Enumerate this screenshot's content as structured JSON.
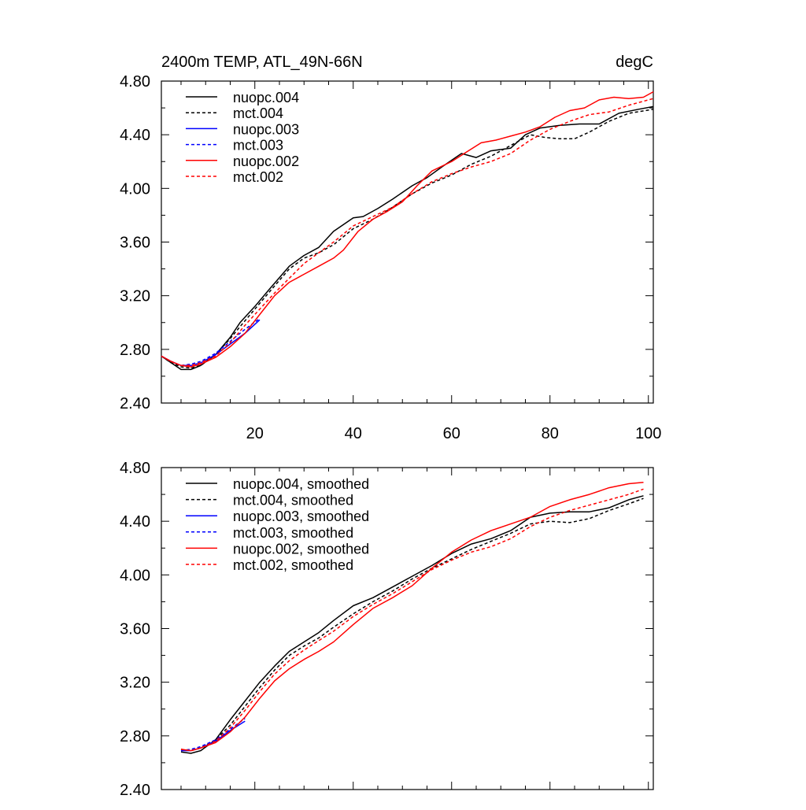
{
  "chart_data": [
    {
      "type": "line",
      "title": "2400m TEMP, ATL_49N-66N",
      "units": "degC",
      "xlim": [
        1,
        101
      ],
      "ylim": [
        2.4,
        4.8
      ],
      "yticks": [
        "2.40",
        "2.80",
        "3.20",
        "3.60",
        "4.00",
        "4.40",
        "4.80"
      ],
      "xticks": [
        "20",
        "40",
        "60",
        "80",
        "100"
      ],
      "series": [
        {
          "name": "nuopc.004",
          "color": "#000000",
          "dash": "solid",
          "x": [
            1,
            3,
            5,
            7,
            9,
            12,
            15,
            17,
            20,
            23,
            27,
            30,
            33,
            36,
            40,
            42,
            45,
            48,
            52,
            55,
            58,
            62,
            65,
            68,
            72,
            75,
            78,
            82,
            86,
            90,
            94,
            98,
            101
          ],
          "y": [
            2.75,
            2.7,
            2.65,
            2.65,
            2.68,
            2.76,
            2.89,
            3.0,
            3.12,
            3.25,
            3.42,
            3.5,
            3.56,
            3.68,
            3.78,
            3.79,
            3.85,
            3.92,
            4.02,
            4.08,
            4.16,
            4.26,
            4.23,
            4.28,
            4.3,
            4.4,
            4.45,
            4.47,
            4.48,
            4.48,
            4.56,
            4.59,
            4.61
          ]
        },
        {
          "name": "mct.004",
          "color": "#000000",
          "dash": "dashed",
          "x": [
            1,
            3,
            5,
            7,
            9,
            12,
            15,
            17,
            20,
            23,
            27,
            30,
            33,
            36,
            40,
            44,
            48,
            52,
            56,
            60,
            64,
            68,
            72,
            76,
            79,
            82,
            85,
            88,
            92,
            96,
            101
          ],
          "y": [
            2.75,
            2.7,
            2.67,
            2.66,
            2.68,
            2.76,
            2.88,
            2.97,
            3.1,
            3.23,
            3.4,
            3.48,
            3.52,
            3.58,
            3.7,
            3.77,
            3.86,
            3.96,
            4.04,
            4.1,
            4.18,
            4.24,
            4.32,
            4.4,
            4.38,
            4.37,
            4.37,
            4.42,
            4.5,
            4.56,
            4.59
          ]
        },
        {
          "name": "nuopc.003",
          "color": "#0000ff",
          "dash": "solid",
          "x": [
            1,
            3,
            5,
            7,
            9,
            12,
            15,
            18,
            21
          ],
          "y": [
            2.75,
            2.71,
            2.68,
            2.68,
            2.7,
            2.76,
            2.84,
            2.92,
            3.02
          ]
        },
        {
          "name": "mct.003",
          "color": "#0000ff",
          "dash": "dashed",
          "x": [
            1,
            3,
            5,
            7,
            9,
            12,
            15,
            18,
            21
          ],
          "y": [
            2.75,
            2.71,
            2.68,
            2.69,
            2.71,
            2.77,
            2.86,
            2.95,
            3.03
          ]
        },
        {
          "name": "nuopc.002",
          "color": "#ff0000",
          "dash": "solid",
          "x": [
            1,
            3,
            5,
            7,
            9,
            12,
            15,
            18,
            21,
            24,
            27,
            30,
            33,
            36,
            38,
            41,
            44,
            47,
            50,
            53,
            56,
            60,
            63,
            66,
            69,
            72,
            75,
            78,
            81,
            84,
            87,
            90,
            93,
            96,
            99,
            101
          ],
          "y": [
            2.75,
            2.71,
            2.68,
            2.67,
            2.69,
            2.74,
            2.82,
            2.92,
            3.06,
            3.2,
            3.3,
            3.36,
            3.42,
            3.48,
            3.54,
            3.68,
            3.77,
            3.83,
            3.9,
            4.02,
            4.13,
            4.2,
            4.27,
            4.34,
            4.36,
            4.39,
            4.42,
            4.46,
            4.53,
            4.58,
            4.6,
            4.66,
            4.68,
            4.67,
            4.68,
            4.72
          ]
        },
        {
          "name": "mct.002",
          "color": "#ff0000",
          "dash": "dashed",
          "x": [
            1,
            3,
            5,
            7,
            9,
            12,
            15,
            18,
            21,
            24,
            27,
            30,
            33,
            36,
            40,
            44,
            48,
            52,
            56,
            60,
            64,
            68,
            72,
            76,
            80,
            84,
            88,
            92,
            96,
            101
          ],
          "y": [
            2.75,
            2.71,
            2.68,
            2.68,
            2.7,
            2.75,
            2.85,
            2.98,
            3.1,
            3.22,
            3.33,
            3.44,
            3.52,
            3.6,
            3.72,
            3.79,
            3.86,
            3.96,
            4.05,
            4.11,
            4.16,
            4.2,
            4.26,
            4.36,
            4.44,
            4.5,
            4.55,
            4.57,
            4.62,
            4.67
          ]
        }
      ]
    },
    {
      "type": "line",
      "xlim": [
        1,
        101
      ],
      "ylim": [
        2.4,
        4.8
      ],
      "yticks": [
        "2.40",
        "2.80",
        "3.20",
        "3.60",
        "4.00",
        "4.40",
        "4.80"
      ],
      "series": [
        {
          "name": "nuopc.004, smoothed",
          "color": "#000000",
          "dash": "solid",
          "x": [
            5,
            7,
            9,
            12,
            15,
            18,
            21,
            24,
            27,
            30,
            33,
            36,
            40,
            44,
            48,
            52,
            56,
            60,
            64,
            68,
            72,
            76,
            80,
            84,
            88,
            92,
            96,
            99
          ],
          "y": [
            2.68,
            2.67,
            2.69,
            2.77,
            2.92,
            3.06,
            3.2,
            3.32,
            3.43,
            3.5,
            3.57,
            3.66,
            3.77,
            3.83,
            3.91,
            3.99,
            4.07,
            4.16,
            4.23,
            4.27,
            4.33,
            4.43,
            4.46,
            4.47,
            4.47,
            4.5,
            4.56,
            4.59
          ]
        },
        {
          "name": "mct.004, smoothed",
          "color": "#000000",
          "dash": "dashed",
          "x": [
            5,
            7,
            9,
            12,
            15,
            18,
            21,
            24,
            27,
            30,
            33,
            36,
            40,
            44,
            48,
            52,
            56,
            60,
            64,
            68,
            72,
            76,
            80,
            84,
            88,
            92,
            96,
            99
          ],
          "y": [
            2.7,
            2.69,
            2.71,
            2.77,
            2.88,
            3.02,
            3.16,
            3.29,
            3.4,
            3.47,
            3.53,
            3.61,
            3.71,
            3.8,
            3.88,
            3.97,
            4.05,
            4.12,
            4.19,
            4.25,
            4.31,
            4.38,
            4.4,
            4.39,
            4.42,
            4.48,
            4.53,
            4.57
          ]
        },
        {
          "name": "nuopc.003, smoothed",
          "color": "#0000ff",
          "dash": "solid",
          "x": [
            5,
            7,
            9,
            12,
            15,
            18
          ],
          "y": [
            2.69,
            2.69,
            2.71,
            2.76,
            2.84,
            2.91
          ]
        },
        {
          "name": "mct.003, smoothed",
          "color": "#0000ff",
          "dash": "dashed",
          "x": [
            5,
            7,
            9,
            12,
            15,
            18
          ],
          "y": [
            2.69,
            2.7,
            2.72,
            2.77,
            2.85,
            2.93
          ]
        },
        {
          "name": "nuopc.002, smoothed",
          "color": "#ff0000",
          "dash": "solid",
          "x": [
            5,
            7,
            9,
            12,
            15,
            18,
            21,
            24,
            27,
            30,
            33,
            36,
            40,
            44,
            48,
            52,
            56,
            60,
            64,
            68,
            72,
            76,
            80,
            84,
            88,
            92,
            96,
            99
          ],
          "y": [
            2.7,
            2.69,
            2.71,
            2.75,
            2.83,
            2.94,
            3.08,
            3.21,
            3.3,
            3.37,
            3.43,
            3.5,
            3.63,
            3.75,
            3.83,
            3.92,
            4.05,
            4.17,
            4.26,
            4.33,
            4.38,
            4.43,
            4.51,
            4.56,
            4.6,
            4.65,
            4.68,
            4.69
          ]
        },
        {
          "name": "mct.002, smoothed",
          "color": "#ff0000",
          "dash": "dashed",
          "x": [
            5,
            7,
            9,
            12,
            15,
            18,
            21,
            24,
            27,
            30,
            33,
            36,
            40,
            44,
            48,
            52,
            56,
            60,
            64,
            68,
            72,
            76,
            80,
            84,
            88,
            92,
            96,
            99
          ],
          "y": [
            2.7,
            2.69,
            2.71,
            2.76,
            2.86,
            2.99,
            3.13,
            3.26,
            3.36,
            3.44,
            3.51,
            3.58,
            3.69,
            3.78,
            3.86,
            3.95,
            4.04,
            4.11,
            4.17,
            4.21,
            4.27,
            4.36,
            4.43,
            4.48,
            4.52,
            4.56,
            4.6,
            4.64
          ]
        }
      ]
    }
  ]
}
